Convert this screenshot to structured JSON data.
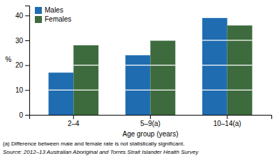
{
  "chart_data": {
    "type": "bar",
    "categories": [
      "2–4",
      "5–9(a)",
      "10–14(a)"
    ],
    "series": [
      {
        "name": "Males",
        "color": "#1F6CB0",
        "values": [
          17,
          24,
          39
        ]
      },
      {
        "name": "Females",
        "color": "#3D6B3D",
        "values": [
          28,
          30,
          36
        ]
      }
    ],
    "ylabel": "%",
    "xlabel": "Age group (years)",
    "ylim": [
      0,
      44
    ],
    "yticks": [
      0,
      10,
      20,
      30,
      40
    ],
    "grid": true,
    "legend": "upper left",
    "annotations": [
      "(a) Difference between male and female rate is not statistically significant.",
      "Source: 2012–13 Australian Aboriginal and Torres Strait Islander Health Survey"
    ]
  }
}
